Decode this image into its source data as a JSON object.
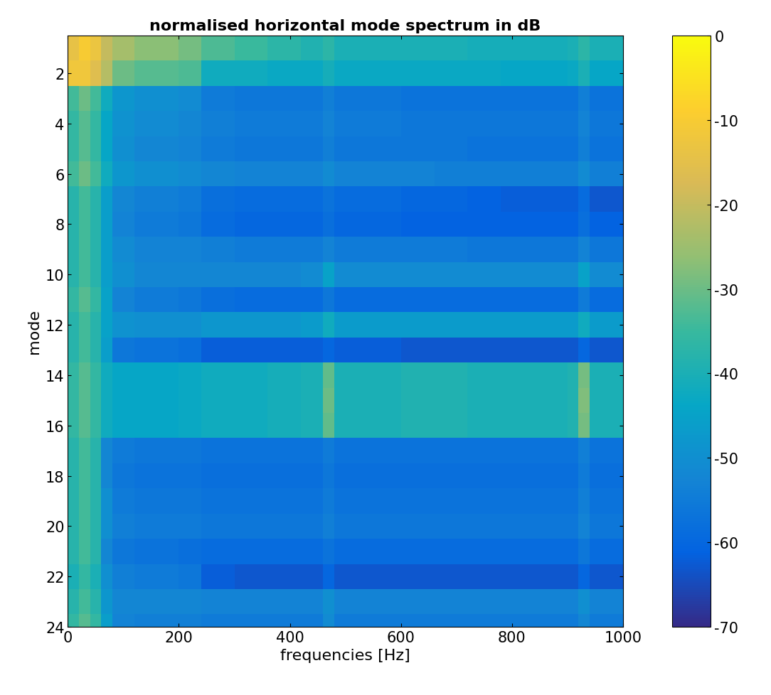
{
  "chart_data": {
    "type": "heatmap",
    "title": "normalised horizontal mode spectrum in dB",
    "x_label": "frequencies [Hz]",
    "y_label": "mode",
    "xlim": [
      0,
      1000
    ],
    "xticks": [
      0,
      200,
      400,
      600,
      800,
      1000
    ],
    "ylim": [
      24,
      0.5
    ],
    "yticks": [
      2,
      4,
      6,
      8,
      10,
      12,
      14,
      16,
      18,
      20,
      22,
      24
    ],
    "x_edges": [
      0,
      20,
      40,
      60,
      80,
      120,
      160,
      200,
      240,
      300,
      360,
      420,
      460,
      480,
      540,
      600,
      660,
      720,
      780,
      840,
      900,
      920,
      940,
      1000
    ],
    "modes": [
      1,
      2,
      3,
      4,
      5,
      6,
      7,
      8,
      9,
      10,
      11,
      12,
      13,
      14,
      15,
      16,
      17,
      18,
      19,
      20,
      21,
      22,
      23,
      24
    ],
    "cells": [
      [
        -14,
        -10,
        -13,
        -20,
        -24,
        -27,
        -27,
        -29,
        -33,
        -35,
        -37,
        -39,
        -37,
        -40,
        -40,
        -40,
        -40,
        -41,
        -41,
        -41,
        -40,
        -37,
        -40
      ],
      [
        -12,
        -12,
        -16,
        -22,
        -30,
        -32,
        -32,
        -33,
        -42,
        -42,
        -43,
        -43,
        -41,
        -43,
        -43,
        -43,
        -43,
        -43,
        -44,
        -44,
        -43,
        -40,
        -44
      ],
      [
        -34,
        -30,
        -34,
        -42,
        -48,
        -50,
        -50,
        -51,
        -55,
        -56,
        -56,
        -56,
        -54,
        -56,
        -56,
        -57,
        -57,
        -57,
        -57,
        -57,
        -57,
        -54,
        -57
      ],
      [
        -36,
        -32,
        -36,
        -44,
        -49,
        -51,
        -51,
        -52,
        -54,
        -55,
        -55,
        -55,
        -53,
        -55,
        -55,
        -56,
        -56,
        -56,
        -56,
        -56,
        -56,
        -53,
        -56
      ],
      [
        -36,
        -32,
        -36,
        -44,
        -50,
        -52,
        -52,
        -53,
        -55,
        -56,
        -56,
        -56,
        -54,
        -56,
        -56,
        -56,
        -56,
        -57,
        -57,
        -57,
        -57,
        -54,
        -57
      ],
      [
        -34,
        -30,
        -34,
        -42,
        -48,
        -50,
        -50,
        -51,
        -52,
        -53,
        -53,
        -53,
        -51,
        -53,
        -53,
        -53,
        -54,
        -54,
        -54,
        -54,
        -54,
        -51,
        -54
      ],
      [
        -38,
        -34,
        -38,
        -46,
        -52,
        -54,
        -54,
        -55,
        -58,
        -59,
        -59,
        -59,
        -57,
        -59,
        -59,
        -60,
        -60,
        -61,
        -62,
        -62,
        -62,
        -59,
        -63
      ],
      [
        -38,
        -34,
        -38,
        -46,
        -53,
        -55,
        -55,
        -56,
        -59,
        -60,
        -60,
        -60,
        -58,
        -60,
        -60,
        -61,
        -61,
        -61,
        -61,
        -61,
        -61,
        -58,
        -61
      ],
      [
        -38,
        -34,
        -38,
        -46,
        -51,
        -53,
        -53,
        -53,
        -54,
        -55,
        -55,
        -55,
        -53,
        -55,
        -55,
        -55,
        -55,
        -56,
        -56,
        -56,
        -56,
        -53,
        -56
      ],
      [
        -38,
        -34,
        -38,
        -46,
        -50,
        -52,
        -52,
        -52,
        -52,
        -52,
        -52,
        -51,
        -45,
        -51,
        -51,
        -51,
        -51,
        -51,
        -51,
        -51,
        -51,
        -45,
        -51
      ],
      [
        -36,
        -32,
        -36,
        -45,
        -53,
        -55,
        -55,
        -56,
        -58,
        -59,
        -59,
        -59,
        -56,
        -59,
        -59,
        -59,
        -59,
        -59,
        -59,
        -59,
        -59,
        -55,
        -59
      ],
      [
        -38,
        -34,
        -38,
        -45,
        -49,
        -50,
        -50,
        -50,
        -48,
        -48,
        -48,
        -47,
        -42,
        -47,
        -47,
        -47,
        -47,
        -47,
        -47,
        -47,
        -47,
        -42,
        -47
      ],
      [
        -38,
        -34,
        -38,
        -46,
        -56,
        -57,
        -57,
        -58,
        -62,
        -62,
        -62,
        -62,
        -60,
        -62,
        -62,
        -63,
        -63,
        -63,
        -63,
        -63,
        -63,
        -60,
        -63
      ],
      [
        -36,
        -32,
        -36,
        -42,
        -44,
        -44,
        -44,
        -43,
        -42,
        -42,
        -41,
        -40,
        -31,
        -40,
        -40,
        -39,
        -39,
        -40,
        -40,
        -40,
        -39,
        -29,
        -40
      ],
      [
        -36,
        -32,
        -36,
        -42,
        -44,
        -44,
        -44,
        -43,
        -42,
        -42,
        -41,
        -40,
        -30,
        -40,
        -40,
        -39,
        -39,
        -40,
        -40,
        -40,
        -39,
        -28,
        -40
      ],
      [
        -36,
        -32,
        -36,
        -42,
        -44,
        -44,
        -44,
        -43,
        -42,
        -42,
        -41,
        -40,
        -31,
        -40,
        -40,
        -39,
        -39,
        -40,
        -40,
        -40,
        -39,
        -29,
        -40
      ],
      [
        -38,
        -34,
        -38,
        -52,
        -55,
        -56,
        -56,
        -56,
        -57,
        -57,
        -57,
        -57,
        -55,
        -57,
        -57,
        -57,
        -57,
        -57,
        -57,
        -57,
        -57,
        -54,
        -57
      ],
      [
        -38,
        -34,
        -38,
        -52,
        -56,
        -57,
        -57,
        -57,
        -58,
        -58,
        -58,
        -58,
        -56,
        -58,
        -58,
        -58,
        -58,
        -58,
        -58,
        -58,
        -58,
        -55,
        -58
      ],
      [
        -38,
        -34,
        -38,
        -50,
        -55,
        -56,
        -56,
        -56,
        -57,
        -57,
        -57,
        -57,
        -55,
        -57,
        -57,
        -57,
        -57,
        -57,
        -57,
        -57,
        -57,
        -54,
        -57
      ],
      [
        -38,
        -34,
        -38,
        -50,
        -54,
        -55,
        -55,
        -55,
        -56,
        -56,
        -56,
        -56,
        -54,
        -56,
        -56,
        -56,
        -56,
        -56,
        -56,
        -56,
        -56,
        -53,
        -56
      ],
      [
        -38,
        -34,
        -38,
        -52,
        -56,
        -57,
        -57,
        -58,
        -59,
        -59,
        -59,
        -59,
        -57,
        -59,
        -59,
        -59,
        -59,
        -59,
        -59,
        -59,
        -59,
        -56,
        -59
      ],
      [
        -40,
        -36,
        -40,
        -50,
        -54,
        -55,
        -55,
        -56,
        -62,
        -63,
        -63,
        -63,
        -60,
        -63,
        -63,
        -63,
        -63,
        -63,
        -63,
        -63,
        -63,
        -60,
        -63
      ],
      [
        -38,
        -34,
        -38,
        -48,
        -52,
        -52,
        -52,
        -52,
        -53,
        -53,
        -53,
        -53,
        -50,
        -53,
        -53,
        -53,
        -53,
        -53,
        -53,
        -53,
        -53,
        -50,
        -53
      ],
      [
        -36,
        -32,
        -36,
        -46,
        -53,
        -54,
        -54,
        -54,
        -55,
        -55,
        -55,
        -55,
        -51,
        -55,
        -55,
        -55,
        -55,
        -55,
        -55,
        -55,
        -55,
        -52,
        -55
      ]
    ],
    "colorbar_lim": [
      -70,
      0
    ],
    "colorbar_ticks": [
      -70,
      -60,
      -50,
      -40,
      -30,
      -20,
      -10,
      0
    ]
  }
}
